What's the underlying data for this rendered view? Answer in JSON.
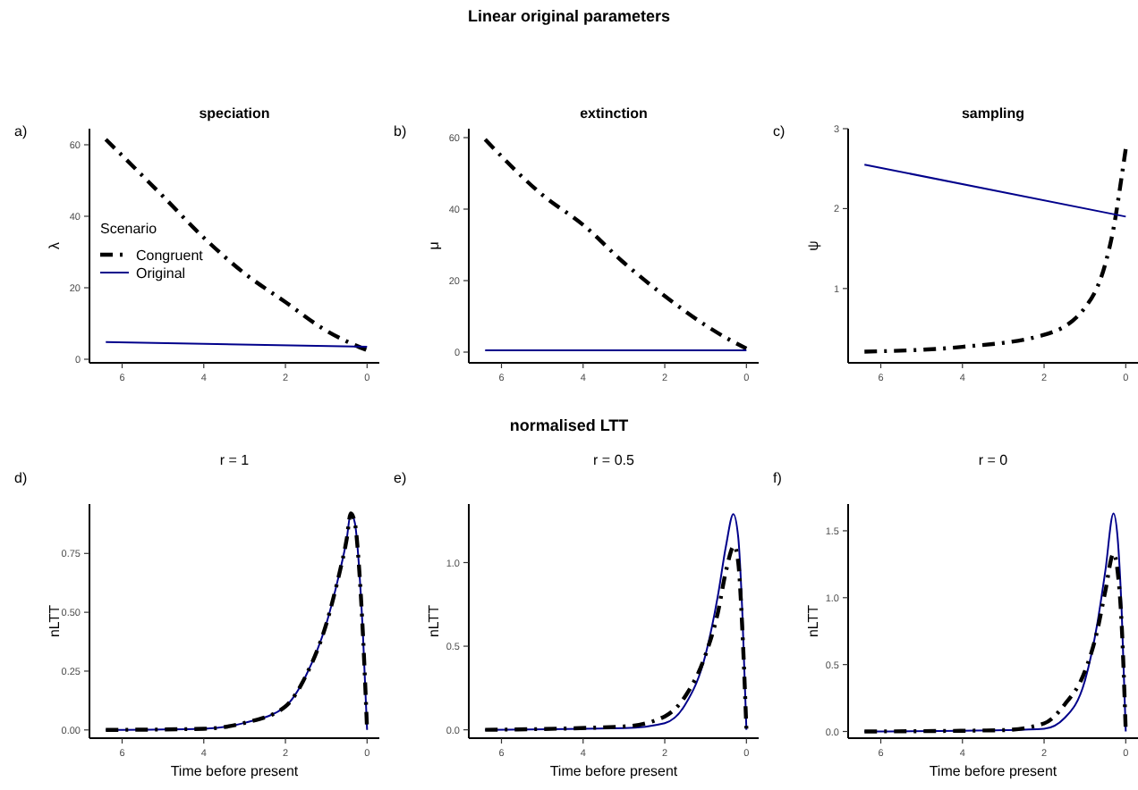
{
  "chart_data": [
    {
      "type": "line",
      "title": "speciation",
      "ylabel": "λ",
      "annotations": [
        "Linear original parameters",
        "a)"
      ],
      "legend": "left",
      "legend_title": "Scenario",
      "xlim": [
        6.8,
        -0.3
      ],
      "xticks": [
        6,
        4,
        2,
        0
      ],
      "ylim": [
        -1,
        64.5
      ],
      "yticks": [
        0,
        20,
        40,
        60
      ],
      "series": [
        {
          "name": "Congruent",
          "color": "#000000",
          "line_style": "dashed",
          "x": [
            6.4,
            5,
            4,
            3,
            2,
            1,
            0.5,
            0
          ],
          "values": [
            61.5,
            45.6,
            34,
            24,
            16,
            8,
            5,
            2.5
          ]
        },
        {
          "name": "Original",
          "color": "#00008b",
          "line_style": "solid",
          "x": [
            6.4,
            0
          ],
          "values": [
            4.8,
            3.5
          ]
        }
      ]
    },
    {
      "type": "line",
      "title": "extinction",
      "ylabel": "μ",
      "annotations": [
        "b)"
      ],
      "xlim": [
        6.8,
        -0.3
      ],
      "xticks": [
        6,
        4,
        2,
        0
      ],
      "ylim": [
        -3,
        62.5
      ],
      "yticks": [
        0,
        20,
        40,
        60
      ],
      "series": [
        {
          "color": "#000000",
          "line_style": "dashed",
          "x": [
            6.4,
            5,
            4,
            3,
            2,
            1,
            0.5,
            0
          ],
          "values": [
            59.5,
            44,
            35.6,
            25,
            15.7,
            7.5,
            4,
            1
          ]
        },
        {
          "color": "#00008b",
          "line_style": "solid",
          "x": [
            6.4,
            0
          ],
          "values": [
            0.5,
            0.5
          ]
        }
      ]
    },
    {
      "type": "line",
      "title": "sampling",
      "ylabel": "ψ",
      "annotations": [
        "c)"
      ],
      "xlim": [
        6.8,
        -0.3
      ],
      "xticks": [
        6,
        4,
        2,
        0
      ],
      "ylim": [
        0.07,
        3
      ],
      "yticks": [
        1,
        2,
        3
      ],
      "series": [
        {
          "color": "#000000",
          "line_style": "dashed",
          "x": [
            6.4,
            4,
            2,
            1,
            0.5,
            0.3,
            0.1,
            0
          ],
          "values": [
            0.21,
            0.27,
            0.42,
            0.76,
            1.31,
            1.75,
            2.4,
            2.75
          ]
        },
        {
          "color": "#00008b",
          "line_style": "solid",
          "x": [
            6.4,
            0
          ],
          "values": [
            2.55,
            1.9
          ]
        }
      ]
    },
    {
      "type": "line",
      "title": "r = 1",
      "xlabel": "Time before present",
      "ylabel": "nLTT",
      "annotations": [
        "normalised LTT",
        "d)"
      ],
      "xlim": [
        6.8,
        -0.3
      ],
      "xticks": [
        6,
        4,
        2,
        0
      ],
      "ylim": [
        -0.035,
        0.96
      ],
      "yticks": [
        {
          "value": 0,
          "label": "0.00"
        },
        {
          "value": 0.25,
          "label": "0.25"
        },
        {
          "value": 0.5,
          "label": "0.50"
        },
        {
          "value": 0.75,
          "label": "0.75"
        }
      ],
      "series": [
        {
          "color": "#00008b",
          "line_style": "solid",
          "x": [
            6.4,
            4,
            3,
            2,
            1.5,
            1,
            0.7,
            0.5,
            0.4,
            0.3,
            0.2,
            0.1,
            0
          ],
          "values": [
            0,
            0.005,
            0.03,
            0.1,
            0.23,
            0.45,
            0.65,
            0.81,
            0.92,
            0.88,
            0.7,
            0.4,
            0
          ]
        },
        {
          "color": "#000000",
          "line_style": "dashed",
          "x": [
            6.4,
            4,
            3,
            2,
            1.5,
            1,
            0.7,
            0.5,
            0.4,
            0.3,
            0.2,
            0.1,
            0
          ],
          "values": [
            0,
            0.005,
            0.03,
            0.1,
            0.23,
            0.45,
            0.65,
            0.81,
            0.92,
            0.88,
            0.7,
            0.4,
            0
          ]
        }
      ]
    },
    {
      "type": "line",
      "title": "r = 0.5",
      "xlabel": "Time before present",
      "ylabel": "nLTT",
      "annotations": [
        "e)"
      ],
      "xlim": [
        6.8,
        -0.3
      ],
      "xticks": [
        6,
        4,
        2,
        0
      ],
      "ylim": [
        -0.05,
        1.35
      ],
      "yticks": [
        {
          "value": 0,
          "label": "0.0"
        },
        {
          "value": 0.5,
          "label": "0.5"
        },
        {
          "value": 1,
          "label": "1.0"
        }
      ],
      "series": [
        {
          "color": "#00008b",
          "line_style": "solid",
          "x": [
            6.4,
            3,
            2,
            1.5,
            1,
            0.7,
            0.5,
            0.32,
            0.2,
            0.1,
            0
          ],
          "values": [
            0,
            0.01,
            0.04,
            0.15,
            0.45,
            0.8,
            1.1,
            1.29,
            1.15,
            0.7,
            0
          ]
        },
        {
          "color": "#000000",
          "line_style": "dashed",
          "x": [
            6.4,
            3,
            2,
            1.5,
            1,
            0.7,
            0.5,
            0.3,
            0.2,
            0.1,
            0
          ],
          "values": [
            0,
            0.02,
            0.08,
            0.2,
            0.45,
            0.7,
            0.95,
            1.1,
            1,
            0.6,
            0
          ]
        }
      ]
    },
    {
      "type": "line",
      "title": "r = 0",
      "xlabel": "Time before present",
      "ylabel": "nLTT",
      "annotations": [
        "f)"
      ],
      "xlim": [
        6.8,
        -0.3
      ],
      "xticks": [
        6,
        4,
        2,
        0
      ],
      "ylim": [
        -0.05,
        1.7
      ],
      "yticks": [
        {
          "value": 0,
          "label": "0.0"
        },
        {
          "value": 0.5,
          "label": "0.5"
        },
        {
          "value": 1,
          "label": "1.0"
        },
        {
          "value": 1.5,
          "label": "1.5"
        }
      ],
      "series": [
        {
          "color": "#00008b",
          "line_style": "solid",
          "x": [
            6.4,
            3,
            2,
            1.5,
            1,
            0.7,
            0.5,
            0.3,
            0.2,
            0.1,
            0
          ],
          "values": [
            0,
            0.01,
            0.02,
            0.1,
            0.38,
            0.8,
            1.2,
            1.63,
            1.45,
            0.9,
            0
          ]
        },
        {
          "color": "#000000",
          "line_style": "dashed",
          "x": [
            6.4,
            3,
            2,
            1.5,
            1,
            0.7,
            0.5,
            0.3,
            0.2,
            0.1,
            0
          ],
          "values": [
            0,
            0.01,
            0.06,
            0.2,
            0.45,
            0.75,
            1.05,
            1.33,
            1.2,
            0.8,
            0
          ]
        }
      ]
    }
  ]
}
